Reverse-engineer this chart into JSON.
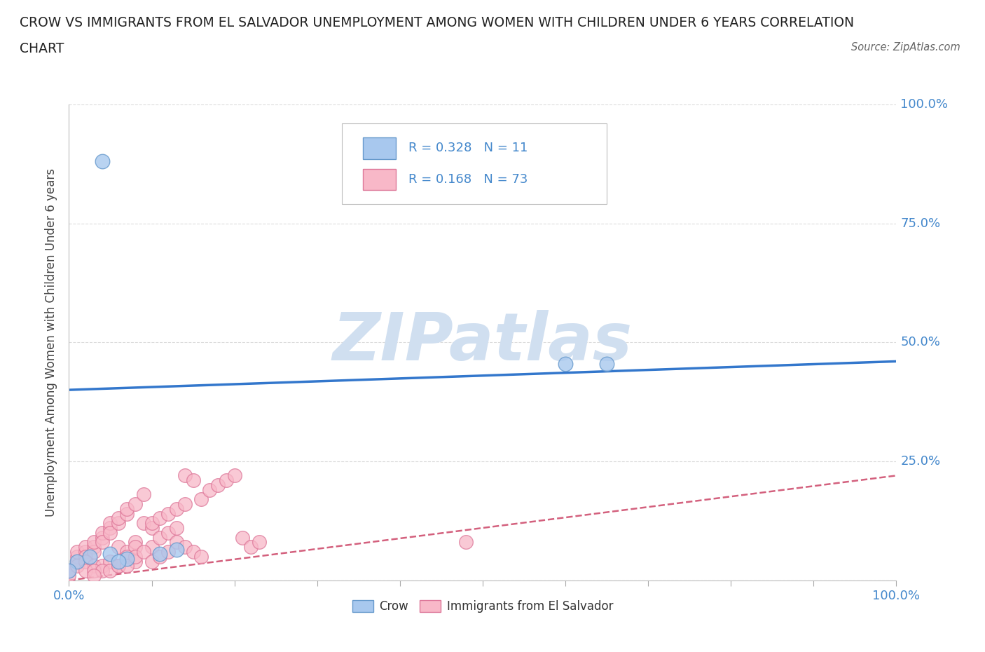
{
  "title_line1": "CROW VS IMMIGRANTS FROM EL SALVADOR UNEMPLOYMENT AMONG WOMEN WITH CHILDREN UNDER 6 YEARS CORRELATION",
  "title_line2": "CHART",
  "source": "Source: ZipAtlas.com",
  "ylabel": "Unemployment Among Women with Children Under 6 years",
  "xlim": [
    0,
    1.0
  ],
  "ylim": [
    0,
    1.0
  ],
  "crow_R": 0.328,
  "crow_N": 11,
  "imm_R": 0.168,
  "imm_N": 73,
  "crow_color": "#a8c8ee",
  "crow_edge_color": "#6699cc",
  "crow_line_color": "#3377cc",
  "imm_color": "#f8b8c8",
  "imm_edge_color": "#dd7799",
  "imm_line_color": "#cc4466",
  "watermark_color": "#d0dff0",
  "background_color": "#ffffff",
  "grid_color": "#cccccc",
  "title_color": "#222222",
  "axis_label_color": "#444444",
  "tick_color": "#4488cc",
  "crow_x": [
    0.04,
    0.01,
    0.0,
    0.025,
    0.07,
    0.11,
    0.13,
    0.05,
    0.6,
    0.65,
    0.06
  ],
  "crow_y": [
    0.88,
    0.04,
    0.02,
    0.05,
    0.045,
    0.055,
    0.065,
    0.055,
    0.455,
    0.455,
    0.04
  ],
  "imm_x": [
    0.0,
    0.0,
    0.01,
    0.01,
    0.01,
    0.02,
    0.02,
    0.02,
    0.03,
    0.03,
    0.03,
    0.04,
    0.04,
    0.04,
    0.05,
    0.05,
    0.05,
    0.06,
    0.06,
    0.06,
    0.07,
    0.07,
    0.07,
    0.08,
    0.08,
    0.08,
    0.09,
    0.09,
    0.1,
    0.1,
    0.1,
    0.11,
    0.11,
    0.12,
    0.12,
    0.13,
    0.13,
    0.14,
    0.14,
    0.15,
    0.16,
    0.17,
    0.18,
    0.19,
    0.2,
    0.21,
    0.22,
    0.23,
    0.01,
    0.02,
    0.03,
    0.04,
    0.05,
    0.06,
    0.07,
    0.08,
    0.02,
    0.03,
    0.04,
    0.05,
    0.06,
    0.07,
    0.08,
    0.09,
    0.1,
    0.11,
    0.12,
    0.13,
    0.14,
    0.15,
    0.16,
    0.48,
    0.03
  ],
  "imm_y": [
    0.01,
    0.02,
    0.04,
    0.05,
    0.06,
    0.06,
    0.07,
    0.05,
    0.07,
    0.06,
    0.08,
    0.09,
    0.1,
    0.08,
    0.11,
    0.12,
    0.1,
    0.12,
    0.13,
    0.07,
    0.14,
    0.15,
    0.06,
    0.16,
    0.08,
    0.07,
    0.12,
    0.18,
    0.11,
    0.12,
    0.07,
    0.13,
    0.09,
    0.14,
    0.1,
    0.15,
    0.11,
    0.16,
    0.22,
    0.21,
    0.17,
    0.19,
    0.2,
    0.21,
    0.22,
    0.09,
    0.07,
    0.08,
    0.03,
    0.04,
    0.03,
    0.03,
    0.04,
    0.03,
    0.05,
    0.04,
    0.02,
    0.02,
    0.02,
    0.02,
    0.03,
    0.03,
    0.05,
    0.06,
    0.04,
    0.05,
    0.06,
    0.08,
    0.07,
    0.06,
    0.05,
    0.08,
    0.01
  ],
  "crow_line_x": [
    0.0,
    1.0
  ],
  "crow_line_y": [
    0.4,
    0.46
  ],
  "imm_line_x": [
    0.0,
    1.0
  ],
  "imm_line_y": [
    0.0,
    0.22
  ]
}
